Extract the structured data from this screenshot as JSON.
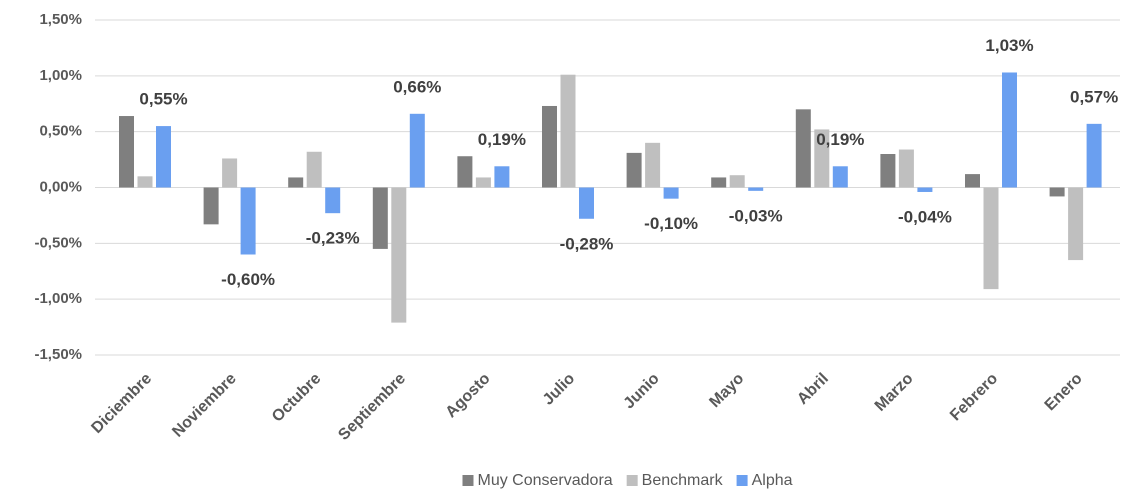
{
  "chart_data": {
    "type": "bar",
    "categories": [
      "Diciembre",
      "Noviembre",
      "Octubre",
      "Septiembre",
      "Agosto",
      "Julio",
      "Junio",
      "Mayo",
      "Abril",
      "Marzo",
      "Febrero",
      "Enero"
    ],
    "series": [
      {
        "name": "Muy Conservadora",
        "color": "#7f7f7f",
        "values": [
          0.64,
          -0.33,
          0.09,
          -0.55,
          0.28,
          0.73,
          0.31,
          0.09,
          0.7,
          0.3,
          0.12,
          -0.08
        ]
      },
      {
        "name": "Benchmark",
        "color": "#bfbfbf",
        "values": [
          0.1,
          0.26,
          0.32,
          -1.21,
          0.09,
          1.01,
          0.4,
          0.11,
          0.52,
          0.34,
          -0.91,
          -0.65
        ]
      },
      {
        "name": "Alpha",
        "color": "#6a9ff0",
        "values": [
          0.55,
          -0.6,
          -0.23,
          0.66,
          0.19,
          -0.28,
          -0.1,
          -0.03,
          0.19,
          -0.04,
          1.03,
          0.57
        ],
        "value_labels": [
          "0,55%",
          "-0,60%",
          "-0,23%",
          "0,66%",
          "0,19%",
          "-0,28%",
          "-0,10%",
          "-0,03%",
          "0,19%",
          "-0,04%",
          "1,03%",
          "0,57%"
        ]
      }
    ],
    "ylim": [
      -1.5,
      1.5
    ],
    "yticks": [
      {
        "value": 1.5,
        "label": "1,50%"
      },
      {
        "value": 1.0,
        "label": "1,00%"
      },
      {
        "value": 0.5,
        "label": "0,50%"
      },
      {
        "value": 0,
        "label": "0,00%"
      },
      {
        "value": -0.5,
        "label": "-0,50%"
      },
      {
        "value": -1.0,
        "label": "-1,00%"
      },
      {
        "value": -1.5,
        "label": "-1,50%"
      }
    ],
    "grid": true,
    "legend": "bottom"
  }
}
